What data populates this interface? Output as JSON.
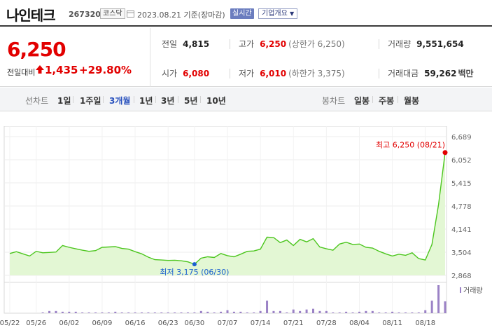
{
  "header": {
    "name": "나인테크",
    "code": "267320",
    "market": "코스닥",
    "date": "2023.08.21 기준(장마감)",
    "realtime": "실시간",
    "company_info": "기업개요"
  },
  "price": {
    "current": "6,250",
    "diff_label": "전일대비",
    "diff_amount": "1,435",
    "diff_rate": "+29.80%"
  },
  "stats": {
    "prev_label": "전일",
    "prev": "4,815",
    "high_label": "고가",
    "high": "6,250",
    "high_limit": "(상한가 6,250)",
    "volume_label": "거래량",
    "volume": "9,551,654",
    "open_label": "시가",
    "open": "6,080",
    "low_label": "저가",
    "low": "6,010",
    "low_limit": "(하한가 3,375)",
    "amount_label": "거래대금",
    "amount": "59,262",
    "amount_unit": "백만"
  },
  "tabs": {
    "line_label": "선차트",
    "line": [
      "1일",
      "1주일",
      "3개월",
      "1년",
      "3년",
      "5년",
      "10년"
    ],
    "active": "3개월",
    "candle_label": "봉차트",
    "candle": [
      "일봉",
      "주봉",
      "월봉"
    ]
  },
  "colors": {
    "up": "#e20000",
    "line": "#4cc61e",
    "fill": "#e3f7d4",
    "bar": "#9b82c6",
    "active_tab": "#2a52be"
  },
  "chart_data": {
    "type": "area",
    "y_ticks": [
      "6,689",
      "6,052",
      "5,415",
      "4,778",
      "4,141",
      "3,504",
      "2,868"
    ],
    "ylim": [
      2868,
      6689
    ],
    "x_ticks": [
      "05/22",
      "05/26",
      "06/02",
      "06/09",
      "06/16",
      "06/23",
      "06/30",
      "07/07",
      "07/14",
      "07/21",
      "07/28",
      "08/04",
      "08/11",
      "08/18"
    ],
    "prices": [
      3470,
      3520,
      3460,
      3400,
      3530,
      3490,
      3500,
      3510,
      3690,
      3640,
      3600,
      3560,
      3530,
      3550,
      3640,
      3650,
      3660,
      3610,
      3590,
      3520,
      3460,
      3370,
      3300,
      3290,
      3280,
      3285,
      3270,
      3240,
      3175,
      3340,
      3380,
      3360,
      3470,
      3410,
      3380,
      3450,
      3530,
      3540,
      3590,
      3920,
      3910,
      3770,
      3840,
      3690,
      3860,
      3790,
      3880,
      3650,
      3600,
      3560,
      3730,
      3780,
      3720,
      3730,
      3640,
      3620,
      3530,
      3460,
      3400,
      3450,
      3420,
      3490,
      3330,
      3290,
      3720,
      4815,
      6250
    ],
    "volumes": [
      0,
      0,
      0,
      0,
      0,
      1,
      3,
      3,
      2,
      2,
      2,
      1,
      1,
      1,
      1,
      1,
      2,
      1,
      1,
      1,
      1,
      1,
      1,
      1,
      1,
      1,
      1,
      1,
      1,
      3,
      2,
      1,
      2,
      4,
      2,
      2,
      1,
      1,
      3,
      17,
      3,
      3,
      1,
      5,
      3,
      5,
      6,
      3,
      3,
      1,
      1,
      2,
      1,
      2,
      3,
      3,
      1,
      1,
      2,
      1,
      1,
      1,
      1,
      4,
      17,
      38,
      16
    ],
    "volume_legend": "거래량",
    "max_label": "최고 6,250 (08/21)",
    "min_label": "최저 3,175 (06/30)",
    "max_index": 66,
    "min_index": 28
  }
}
